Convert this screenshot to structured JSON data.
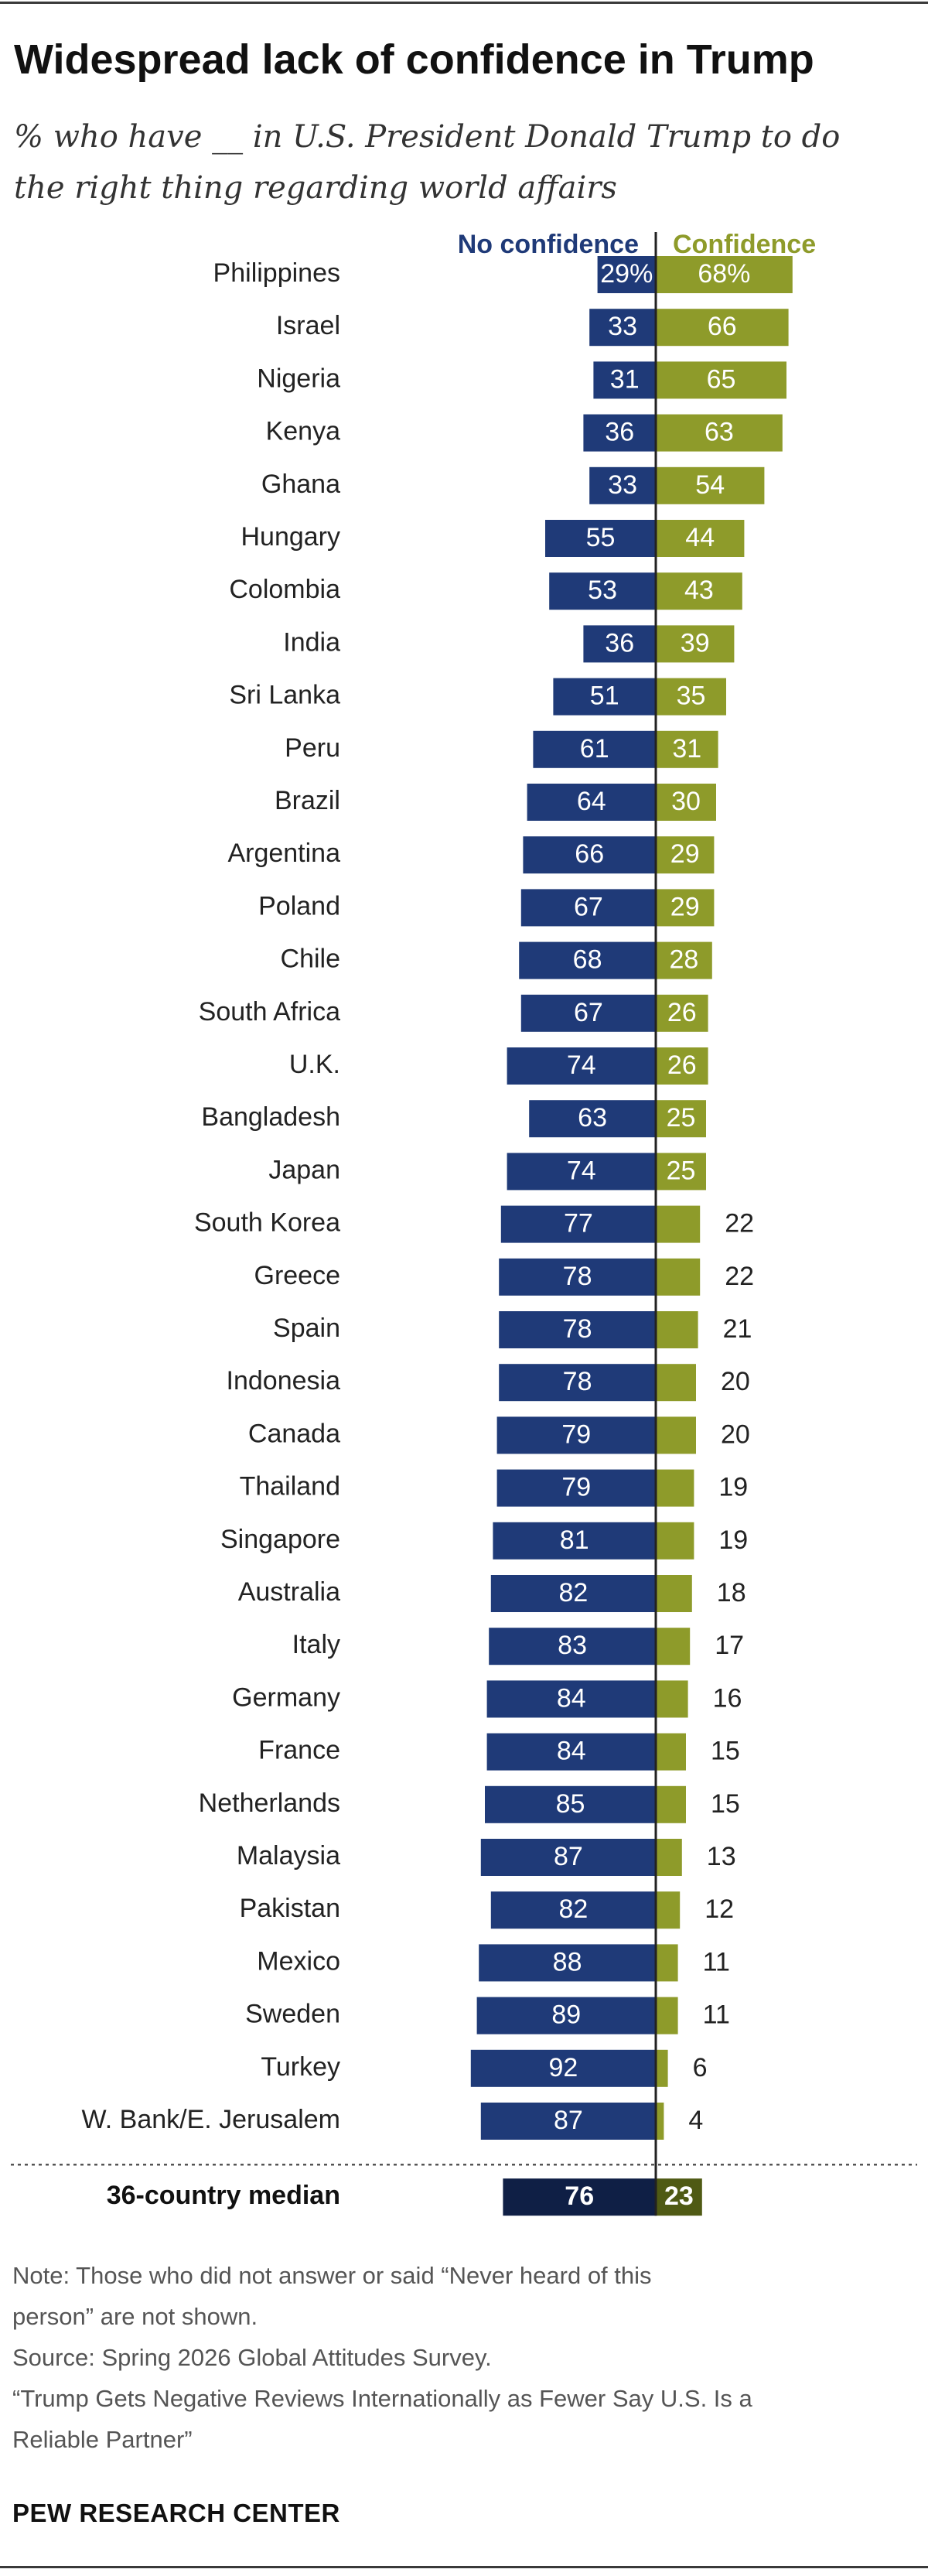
{
  "chart_data": {
    "type": "bar",
    "title": "Widespread lack of confidence in Trump",
    "subtitle_lines": [
      "% who have __ in U.S. President Donald Trump to do",
      "the right thing regarding world affairs"
    ],
    "categories": [
      "Philippines",
      "Israel",
      "Nigeria",
      "Kenya",
      "Ghana",
      "Hungary",
      "Colombia",
      "India",
      "Sri Lanka",
      "Peru",
      "Brazil",
      "Argentina",
      "Poland",
      "Chile",
      "South Africa",
      "U.K.",
      "Bangladesh",
      "Japan",
      "South Korea",
      "Greece",
      "Spain",
      "Indonesia",
      "Canada",
      "Thailand",
      "Singapore",
      "Australia",
      "Italy",
      "Germany",
      "France",
      "Netherlands",
      "Malaysia",
      "Pakistan",
      "Mexico",
      "Sweden",
      "Turkey",
      "W. Bank/E. Jerusalem"
    ],
    "series": [
      {
        "name": "No confidence",
        "color": "#1f3a78",
        "values": [
          29,
          33,
          31,
          36,
          33,
          55,
          53,
          36,
          51,
          61,
          64,
          66,
          67,
          68,
          67,
          74,
          63,
          74,
          77,
          78,
          78,
          78,
          79,
          79,
          81,
          82,
          83,
          84,
          84,
          85,
          87,
          82,
          88,
          89,
          92,
          87
        ],
        "first_label": "29%"
      },
      {
        "name": "Confidence",
        "color": "#8e9b2a",
        "values": [
          68,
          66,
          65,
          63,
          54,
          44,
          43,
          39,
          35,
          31,
          30,
          29,
          29,
          28,
          26,
          26,
          25,
          25,
          22,
          22,
          21,
          20,
          20,
          19,
          19,
          18,
          17,
          16,
          15,
          15,
          13,
          12,
          11,
          11,
          6,
          4
        ],
        "first_label": "68%"
      }
    ],
    "median": {
      "label": "36-country median",
      "no_confidence": 76,
      "confidence": 23,
      "no_confidence_color": "#0f1f45",
      "confidence_color": "#4f5a14"
    },
    "colors": {
      "no_confidence": "#1f3a78",
      "confidence": "#8e9b2a"
    },
    "ylim": [
      0,
      100
    ],
    "grid": false
  },
  "notes": [
    "Note: Those who did not answer or said “Never heard of this",
    "person” are not shown.",
    "Source: Spring 2026 Global Attitudes Survey.",
    "“Trump Gets Negative Reviews Internationally as Fewer Say U.S. Is a",
    "Reliable Partner”"
  ],
  "source_org": "PEW RESEARCH CENTER"
}
